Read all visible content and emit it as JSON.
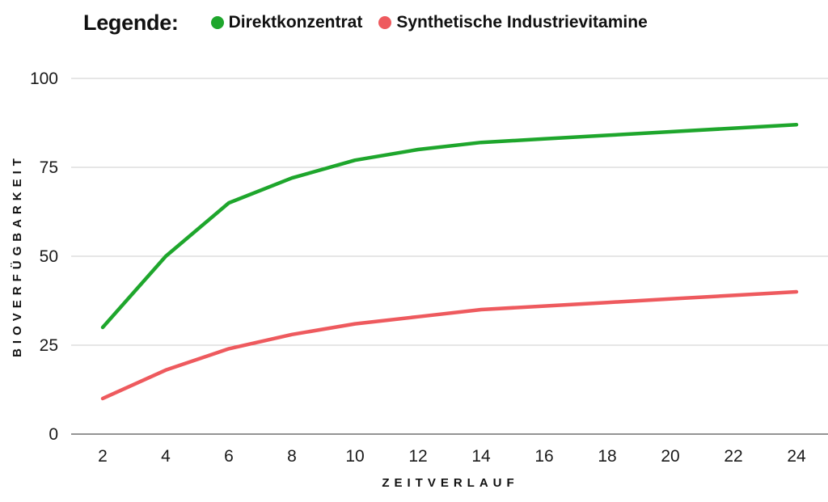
{
  "legend": {
    "title": "Legende:",
    "items": [
      {
        "label": "Direktkonzentrat",
        "color": "#1ea62c"
      },
      {
        "label": "Synthetische Industrievitamine",
        "color": "#ee5a5e"
      }
    ]
  },
  "chart_data": {
    "type": "line",
    "x": [
      2,
      4,
      6,
      8,
      10,
      12,
      14,
      16,
      18,
      20,
      22,
      24
    ],
    "xlabel": "ZEITVERLAUF",
    "ylabel": "BIOVERFÜGBARKEIT",
    "xlim": [
      1,
      25
    ],
    "ylim": [
      0,
      100
    ],
    "yticks": [
      0,
      25,
      50,
      75,
      100
    ],
    "grid": true,
    "legend_position": "top-left",
    "series": [
      {
        "name": "Direktkonzentrat",
        "color": "#1ea62c",
        "values": [
          30,
          50,
          65,
          72,
          77,
          80,
          82,
          83,
          84,
          85,
          86,
          87
        ]
      },
      {
        "name": "Synthetische Industrievitamine",
        "color": "#ee5a5e",
        "values": [
          10,
          18,
          24,
          28,
          31,
          33,
          35,
          36,
          37,
          38,
          39,
          40
        ]
      }
    ]
  }
}
